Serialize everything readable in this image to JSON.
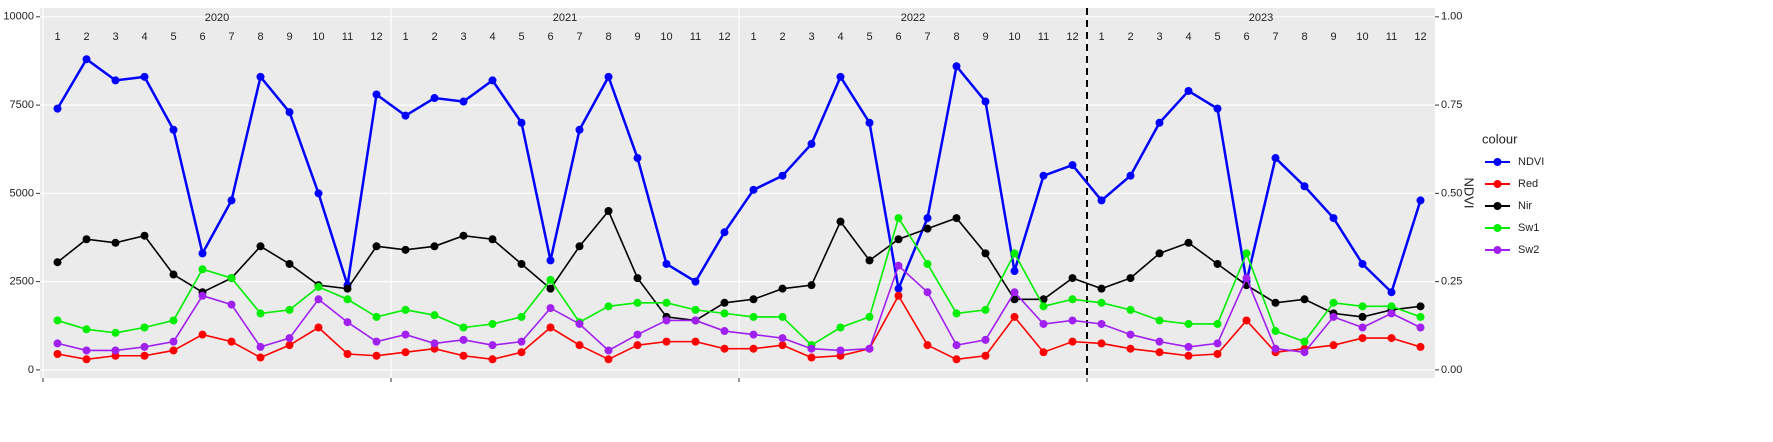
{
  "chart_data": {
    "type": "line",
    "y2label": "NDVI",
    "legend_title": "colour",
    "legend": "right",
    "grid": true,
    "years": [
      "2020",
      "2021",
      "2022",
      "2023"
    ],
    "months": [
      "1",
      "2",
      "3",
      "4",
      "5",
      "6",
      "7",
      "8",
      "9",
      "10",
      "11",
      "12"
    ],
    "vline": "2023-01",
    "x": [
      "2020-01",
      "2020-02",
      "2020-03",
      "2020-04",
      "2020-05",
      "2020-06",
      "2020-07",
      "2020-08",
      "2020-09",
      "2020-10",
      "2020-11",
      "2020-12",
      "2021-01",
      "2021-02",
      "2021-03",
      "2021-04",
      "2021-05",
      "2021-06",
      "2021-07",
      "2021-08",
      "2021-09",
      "2021-10",
      "2021-11",
      "2021-12",
      "2022-01",
      "2022-02",
      "2022-03",
      "2022-04",
      "2022-05",
      "2022-06",
      "2022-07",
      "2022-08",
      "2022-09",
      "2022-10",
      "2022-11",
      "2022-12",
      "2023-01",
      "2023-02",
      "2023-03",
      "2023-04",
      "2023-05",
      "2023-06",
      "2023-07",
      "2023-08",
      "2023-09",
      "2023-10",
      "2023-11",
      "2023-12"
    ],
    "ylim": [
      -230,
      10250
    ],
    "yticks": [
      0,
      2500,
      5000,
      7500,
      10000
    ],
    "y2lim": [
      -0.023,
      1.025
    ],
    "y2ticks": [
      {
        "value": 0,
        "label": "0.00"
      },
      {
        "value": 0.25,
        "label": "0.25"
      },
      {
        "value": 0.5,
        "label": "0.50"
      },
      {
        "value": 0.75,
        "label": "0.75"
      },
      {
        "value": 1,
        "label": "1.00"
      }
    ],
    "series": [
      {
        "name": "NDVI",
        "color": "#0000ff",
        "axis": "y2",
        "values": [
          0.74,
          0.88,
          0.82,
          0.83,
          0.68,
          0.33,
          0.48,
          0.83,
          0.73,
          0.5,
          0.24,
          0.78,
          0.72,
          0.77,
          0.76,
          0.82,
          0.7,
          0.31,
          0.68,
          0.83,
          0.6,
          0.3,
          0.25,
          0.39,
          0.51,
          0.55,
          0.64,
          0.83,
          0.7,
          0.23,
          0.43,
          0.86,
          0.76,
          0.28,
          0.55,
          0.58,
          0.48,
          0.55,
          0.7,
          0.79,
          0.74,
          0.25,
          0.6,
          0.52,
          0.43,
          0.3,
          0.22,
          0.48
        ]
      },
      {
        "name": "Red",
        "color": "#ff0000",
        "values": [
          450,
          300,
          400,
          400,
          550,
          1000,
          800,
          350,
          700,
          1200,
          450,
          400,
          500,
          600,
          400,
          300,
          500,
          1200,
          700,
          300,
          700,
          800,
          800,
          600,
          600,
          700,
          350,
          400,
          600,
          2100,
          700,
          300,
          400,
          1500,
          500,
          800,
          750,
          600,
          500,
          400,
          450,
          1400,
          500,
          600,
          700,
          900,
          900,
          650
        ]
      },
      {
        "name": "Nir",
        "color": "#000000",
        "values": [
          3050,
          3700,
          3600,
          3800,
          2700,
          2200,
          2600,
          3500,
          3000,
          2400,
          2300,
          3500,
          3400,
          3500,
          3800,
          3700,
          3000,
          2300,
          3500,
          4500,
          2600,
          1500,
          1400,
          1900,
          2000,
          2300,
          2400,
          4200,
          3100,
          3700,
          4000,
          4300,
          3300,
          2000,
          2000,
          2600,
          2300,
          2600,
          3300,
          3600,
          3000,
          2400,
          1900,
          2000,
          1600,
          1500,
          1700,
          1800
        ]
      },
      {
        "name": "Sw1",
        "color": "#00ee00",
        "values": [
          1400,
          1150,
          1050,
          1200,
          1400,
          2850,
          2600,
          1600,
          1700,
          2350,
          2000,
          1500,
          1700,
          1550,
          1200,
          1300,
          1500,
          2550,
          1350,
          1800,
          1900,
          1900,
          1700,
          1600,
          1500,
          1500,
          700,
          1200,
          1500,
          4300,
          3000,
          1600,
          1700,
          3300,
          1800,
          2000,
          1900,
          1700,
          1400,
          1300,
          1300,
          3300,
          1100,
          800,
          1900,
          1800,
          1800,
          1500
        ]
      },
      {
        "name": "Sw2",
        "color": "#a020f0",
        "values": [
          750,
          550,
          550,
          650,
          800,
          2100,
          1850,
          650,
          900,
          2000,
          1350,
          800,
          1000,
          750,
          850,
          700,
          800,
          1750,
          1300,
          550,
          1000,
          1400,
          1400,
          1100,
          1000,
          900,
          600,
          550,
          600,
          2950,
          2200,
          700,
          850,
          2200,
          1300,
          1400,
          1300,
          1000,
          800,
          650,
          750,
          2600,
          600,
          500,
          1500,
          1200,
          1600,
          1200
        ]
      }
    ]
  }
}
